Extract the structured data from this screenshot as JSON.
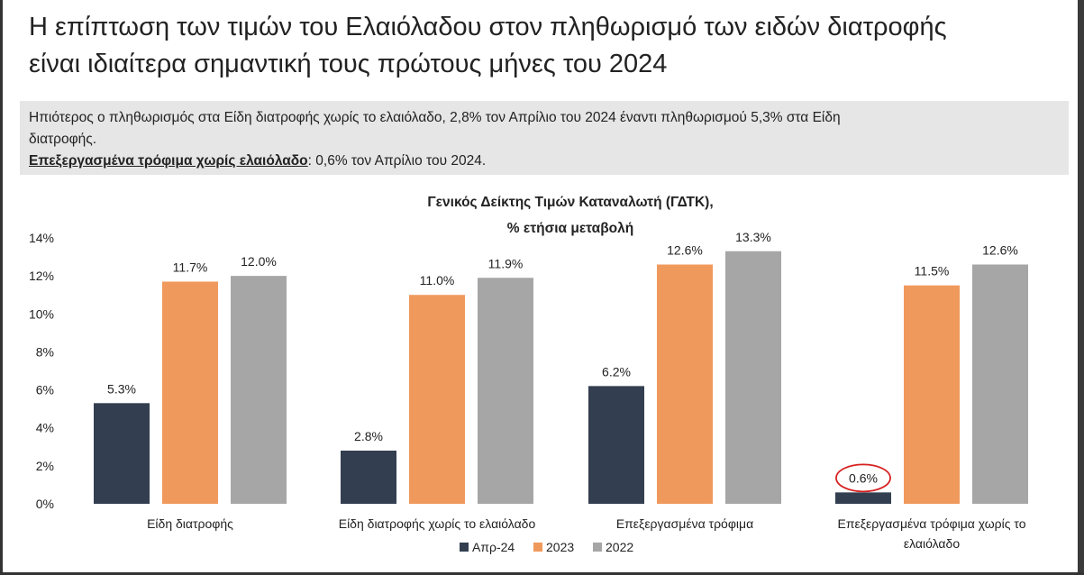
{
  "page": {
    "title_line1": "Η επίπτωση των τιμών του Ελαιόλαδου στον πληθωρισμό των ειδών διατροφής",
    "title_line2": "είναι ιδιαίτερα σημαντική τους πρώτους μήνες του 2024",
    "callout_line1": "Ηπιότερος ο πληθωρισμός στα Είδη διατροφής χωρίς το ελαιόλαδο, 2,8% τον Απρίλιο του 2024 έναντι πληθωρισμού 5,3% στα Είδη",
    "callout_line2": "διατροφής.",
    "callout_strong": "Επεξεργασμένα τρόφιμα χωρίς ελαιόλαδο",
    "callout_rest": ": 0,6% τον Απρίλιο του 2024."
  },
  "chart_data": {
    "type": "bar",
    "title_line1": "Γενικός Δείκτης Τιμών Καταναλωτή (ΓΔΤΚ),",
    "title_line2": "% ετήσια μεταβολή",
    "categories": [
      [
        "Είδη διατροφής"
      ],
      [
        "Είδη διατροφής χωρίς το ελαιόλαδο"
      ],
      [
        "Επεξεργασμένα τρόφιμα"
      ],
      [
        "Επεξεργασμένα τρόφιμα χωρίς το",
        "ελαιόλαδο"
      ]
    ],
    "series": [
      {
        "name": "Απρ-24",
        "color": "#333f50",
        "values": [
          5.3,
          2.8,
          6.2,
          0.6
        ],
        "labels": [
          "5.3%",
          "2.8%",
          "6.2%",
          "0.6%"
        ]
      },
      {
        "name": "2023",
        "color": "#f0995c",
        "values": [
          11.7,
          11.0,
          12.6,
          11.5
        ],
        "labels": [
          "11.7%",
          "11.0%",
          "12.6%",
          "11.5%"
        ]
      },
      {
        "name": "2022",
        "color": "#a6a6a6",
        "values": [
          12.0,
          11.9,
          13.3,
          12.6
        ],
        "labels": [
          "12.0%",
          "11.9%",
          "13.3%",
          "12.6%"
        ]
      }
    ],
    "ylim": [
      0,
      14
    ],
    "yticks": [
      "0%",
      "2%",
      "4%",
      "6%",
      "8%",
      "10%",
      "12%",
      "14%"
    ],
    "grid": false,
    "legend": "bottom",
    "highlight": {
      "series": 0,
      "category": 3,
      "style": "red-circle"
    }
  }
}
